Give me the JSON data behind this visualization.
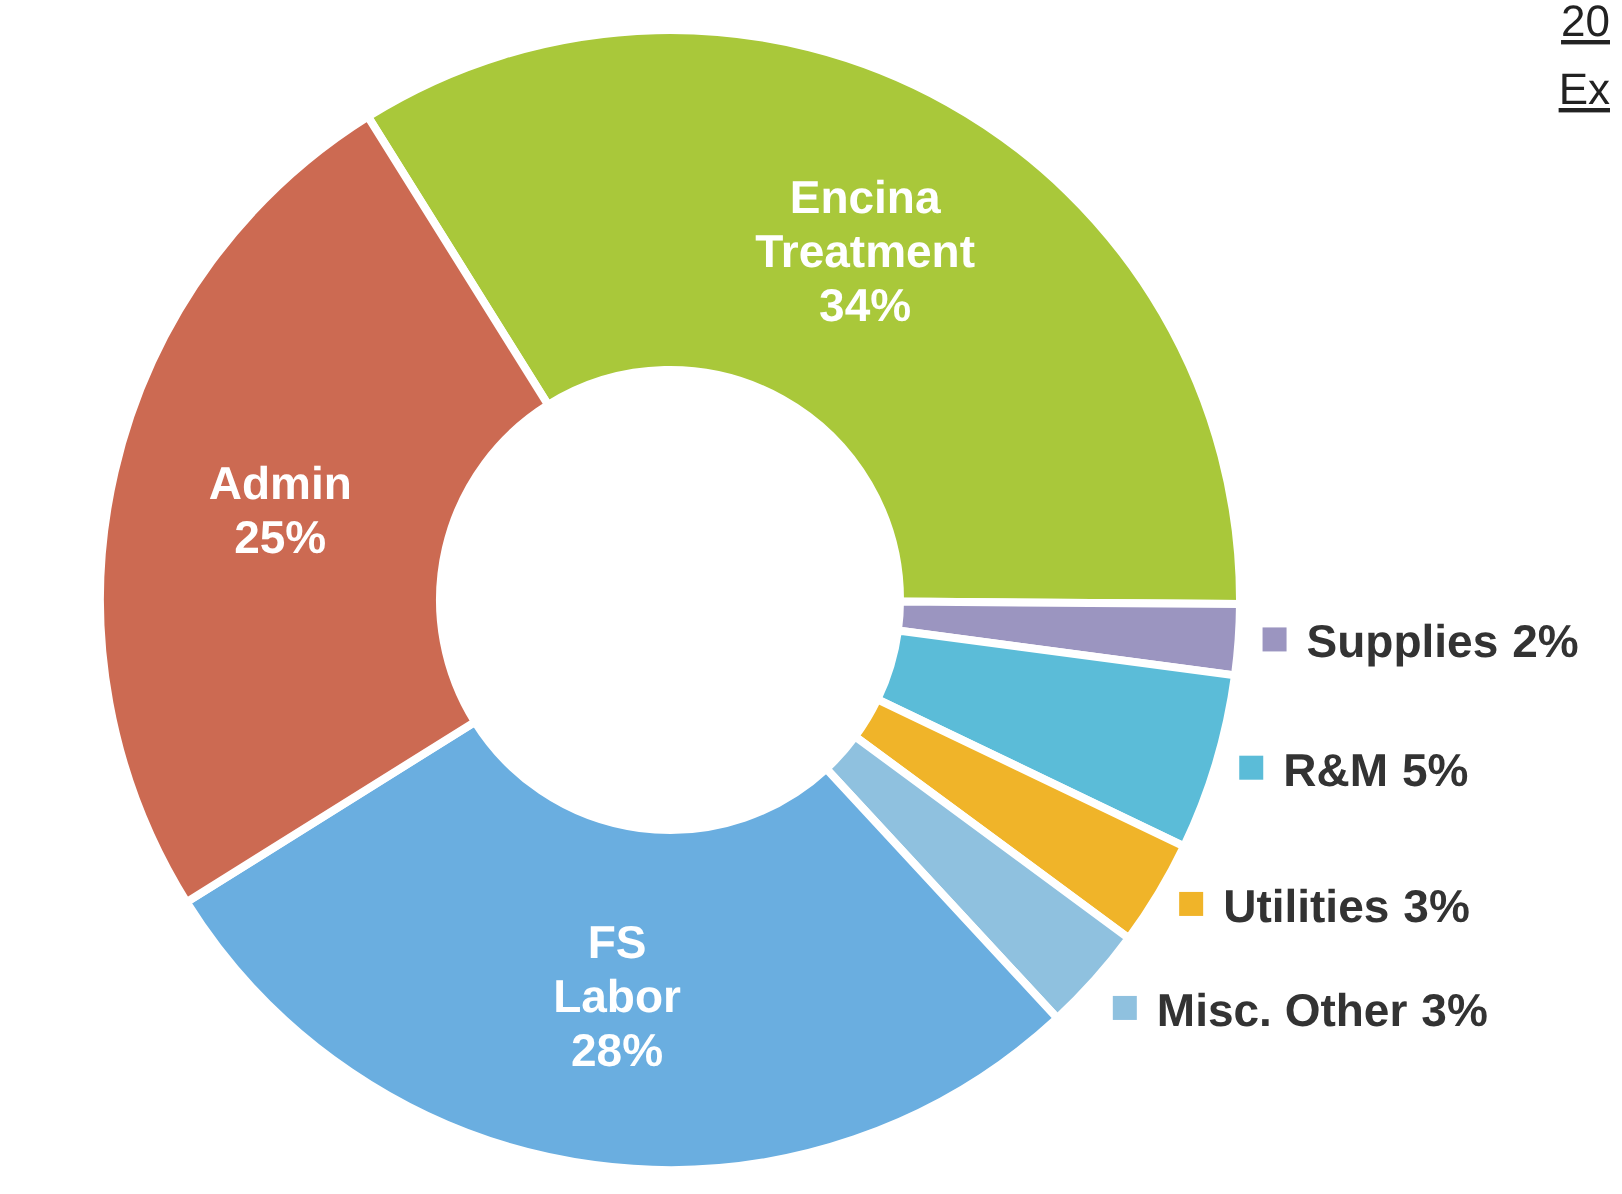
{
  "chart_data": {
    "type": "donut",
    "title": "20",
    "subtitle": "Ex",
    "categories": [
      "Encina Treatment",
      "Supplies",
      "R&M",
      "Utilities",
      "Misc. Other",
      "FS Labor",
      "Admin"
    ],
    "values": [
      34,
      2,
      5,
      3,
      3,
      28,
      25
    ],
    "value_labels": [
      "34%",
      "2%",
      "5%",
      "3%",
      "3%",
      "28%",
      "25%"
    ],
    "colors": [
      "#a9c83a",
      "#9b95c0",
      "#5bbcd8",
      "#f0b429",
      "#8fc1df",
      "#6aaee0",
      "#cc6a52"
    ],
    "legend": "right"
  }
}
